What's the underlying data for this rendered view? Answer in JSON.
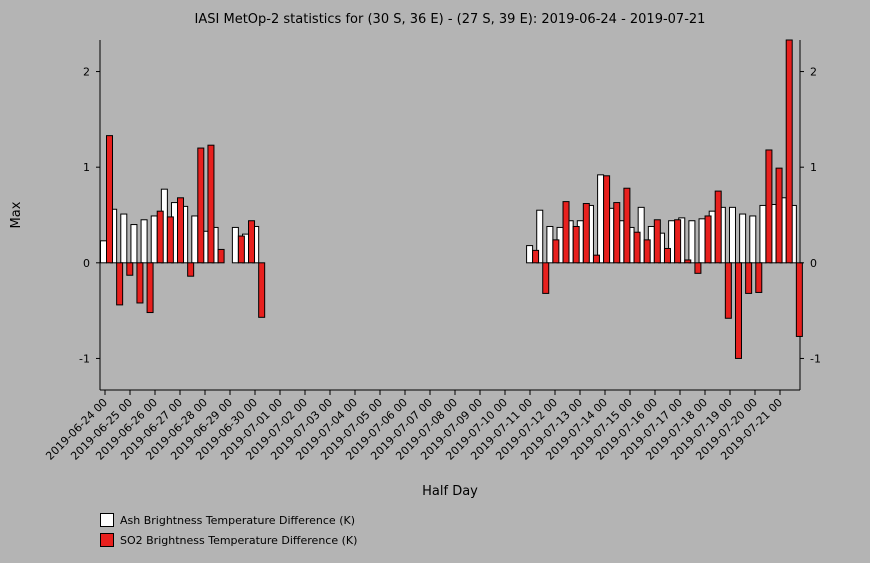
{
  "chart_data": {
    "type": "bar",
    "title": "IASI MetOp-2 statistics for (30 S, 36 E) - (27 S, 39 E): 2019-06-24 - 2019-07-21",
    "xlabel": "Half Day",
    "ylabel": "Max",
    "ylim": [
      -1.33,
      2.33
    ],
    "yticks": [
      "2",
      "1",
      "0",
      "-1"
    ],
    "ytick_values": [
      2,
      1,
      0,
      -1
    ],
    "x_tick_labels": [
      "2019-06-24 00",
      "2019-06-25 00",
      "2019-06-26 00",
      "2019-06-27 00",
      "2019-06-28 00",
      "2019-06-29 00",
      "2019-06-30 00",
      "2019-07-01 00",
      "2019-07-02 00",
      "2019-07-03 00",
      "2019-07-04 00",
      "2019-07-05 00",
      "2019-07-06 00",
      "2019-07-07 00",
      "2019-07-08 00",
      "2019-07-09 00",
      "2019-07-10 00",
      "2019-07-11 00",
      "2019-07-12 00",
      "2019-07-13 00",
      "2019-07-14 00",
      "2019-07-15 00",
      "2019-07-16 00",
      "2019-07-17 00",
      "2019-07-18 00",
      "2019-07-19 00",
      "2019-07-20 00",
      "2019-07-21 00"
    ],
    "series": [
      {
        "name": "Ash Brightness Temperature Difference (K)",
        "color": "#ffffff",
        "values": [
          0.23,
          0.56,
          0.51,
          0.4,
          0.45,
          0.49,
          0.77,
          0.63,
          0.59,
          0.49,
          0.33,
          0.37,
          null,
          0.37,
          0.3,
          0.38,
          null,
          null,
          null,
          null,
          null,
          null,
          null,
          null,
          null,
          null,
          null,
          null,
          null,
          null,
          null,
          null,
          null,
          null,
          null,
          null,
          null,
          null,
          null,
          null,
          null,
          null,
          0.18,
          0.55,
          0.38,
          0.37,
          0.44,
          0.44,
          0.6,
          0.92,
          0.57,
          0.44,
          0.37,
          0.58,
          0.38,
          0.31,
          0.44,
          0.47,
          0.44,
          0.46,
          0.54,
          0.58,
          0.58,
          0.51,
          0.49,
          0.6,
          0.61,
          0.68,
          0.6
        ]
      },
      {
        "name": "SO2 Brightness Temperature Difference (K)",
        "color": "#e8201e",
        "values": [
          1.33,
          -0.44,
          -0.13,
          -0.42,
          -0.52,
          0.54,
          0.48,
          0.68,
          -0.14,
          1.2,
          1.23,
          0.14,
          null,
          0.28,
          0.44,
          -0.57,
          null,
          null,
          null,
          null,
          null,
          null,
          null,
          null,
          null,
          null,
          null,
          null,
          null,
          null,
          null,
          null,
          null,
          null,
          null,
          null,
          null,
          null,
          null,
          null,
          null,
          null,
          0.13,
          -0.32,
          0.24,
          0.64,
          0.38,
          0.62,
          0.08,
          0.91,
          0.63,
          0.78,
          0.32,
          0.24,
          0.45,
          0.15,
          0.45,
          0.03,
          -0.11,
          0.49,
          0.75,
          -0.58,
          -1.0,
          -0.32,
          -0.31,
          1.18,
          0.99,
          2.33,
          -0.77
        ]
      }
    ],
    "legend": "bottom-left"
  }
}
